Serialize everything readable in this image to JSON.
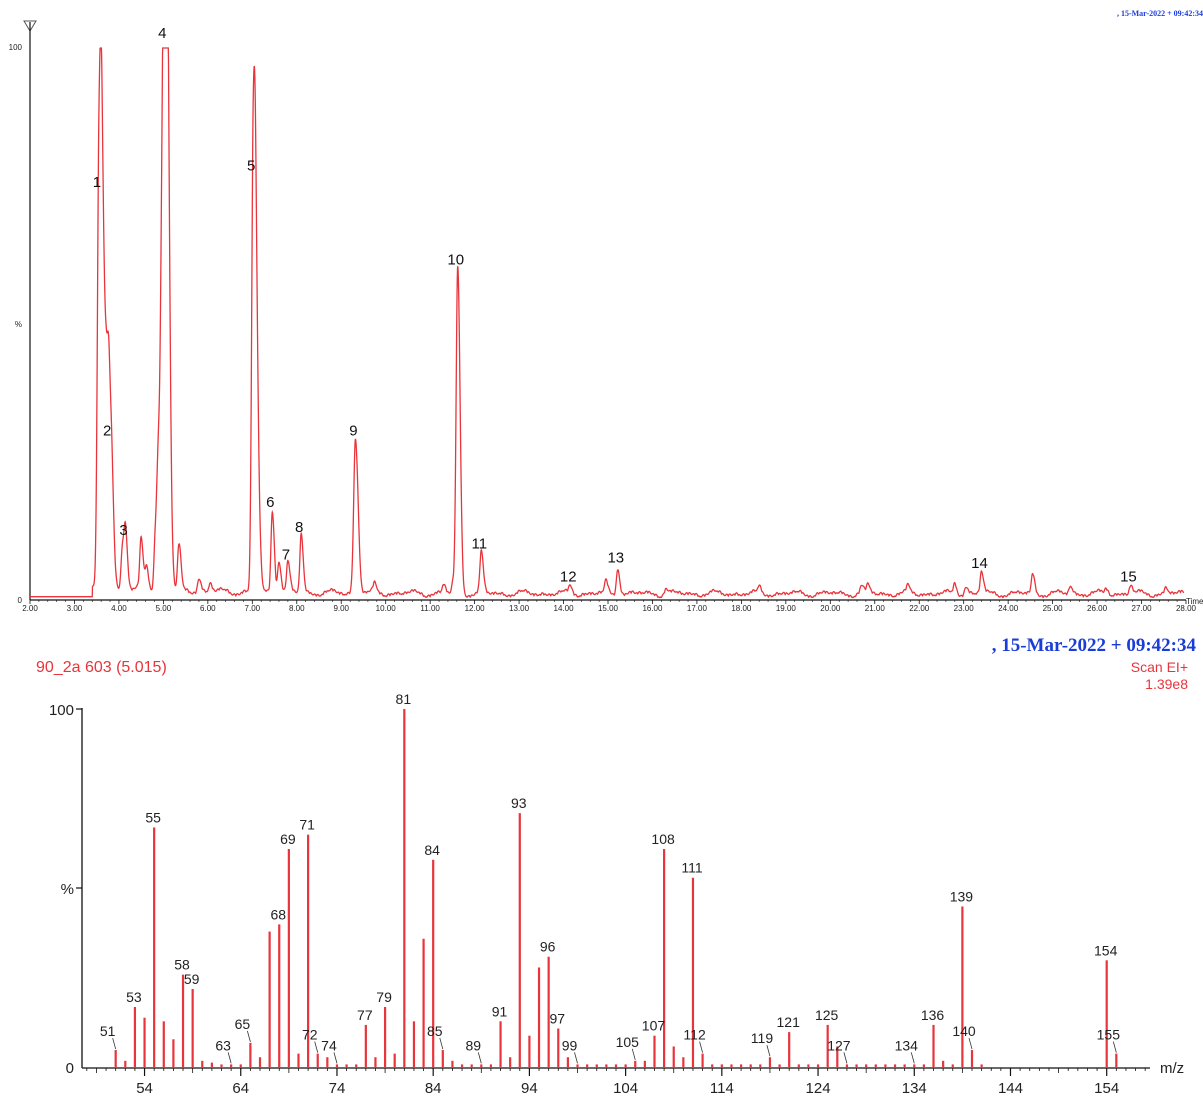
{
  "chromatogram": {
    "header_date": ", 15-Mar-2022 + 09:42:34",
    "y_label_top": "100",
    "y_label_mid": "%",
    "y_label_zero": "0",
    "x_title": "Time",
    "line_color": "#e8343b",
    "chart_data": {
      "type": "line",
      "xlim": [
        2.0,
        28.0
      ],
      "ylim": [
        0,
        100
      ],
      "x_ticks": [
        "2.00",
        "3.00",
        "4.00",
        "5.00",
        "6.00",
        "7.00",
        "8.00",
        "9.00",
        "10.00",
        "11.00",
        "12.00",
        "13.00",
        "14.00",
        "15.00",
        "16.00",
        "17.00",
        "18.00",
        "19.00",
        "20.00",
        "21.00",
        "22.00",
        "23.00",
        "24.00",
        "25.00",
        "26.00",
        "27.00",
        "28.00"
      ],
      "peaks": [
        {
          "label": "1",
          "x": 3.55,
          "y": 73
        },
        {
          "label": "2",
          "x": 3.78,
          "y": 28
        },
        {
          "label": "3",
          "x": 4.15,
          "y": 10
        },
        {
          "label": "4",
          "x": 5.02,
          "y": 100
        },
        {
          "label": "5",
          "x": 7.02,
          "y": 76
        },
        {
          "label": "6",
          "x": 7.45,
          "y": 15
        },
        {
          "label": "7",
          "x": 7.8,
          "y": 5.5
        },
        {
          "label": "8",
          "x": 8.1,
          "y": 10.5
        },
        {
          "label": "9",
          "x": 9.32,
          "y": 28
        },
        {
          "label": "10",
          "x": 11.62,
          "y": 59
        },
        {
          "label": "11",
          "x": 12.15,
          "y": 7.5
        },
        {
          "label": "12",
          "x": 14.15,
          "y": 1.5
        },
        {
          "label": "13",
          "x": 15.22,
          "y": 5
        },
        {
          "label": "14",
          "x": 23.4,
          "y": 4
        },
        {
          "label": "15",
          "x": 26.75,
          "y": 1.5
        }
      ],
      "minor_peaks": [
        {
          "x": 3.62,
          "y": 60
        },
        {
          "x": 3.72,
          "y": 22
        },
        {
          "x": 3.85,
          "y": 8
        },
        {
          "x": 4.08,
          "y": 8
        },
        {
          "x": 4.5,
          "y": 9
        },
        {
          "x": 4.62,
          "y": 4
        },
        {
          "x": 4.82,
          "y": 9
        },
        {
          "x": 4.9,
          "y": 25
        },
        {
          "x": 4.96,
          "y": 18
        },
        {
          "x": 5.08,
          "y": 70
        },
        {
          "x": 5.35,
          "y": 8
        },
        {
          "x": 5.8,
          "y": 2.5
        },
        {
          "x": 6.05,
          "y": 1.5
        },
        {
          "x": 7.08,
          "y": 40
        },
        {
          "x": 7.6,
          "y": 6
        },
        {
          "x": 9.75,
          "y": 1.5
        },
        {
          "x": 11.3,
          "y": 1.5
        },
        {
          "x": 11.52,
          "y": 2
        },
        {
          "x": 14.95,
          "y": 2
        },
        {
          "x": 16.3,
          "y": 1
        },
        {
          "x": 18.4,
          "y": 1
        },
        {
          "x": 20.7,
          "y": 1.3
        },
        {
          "x": 20.85,
          "y": 1.5
        },
        {
          "x": 21.75,
          "y": 1.2
        },
        {
          "x": 22.8,
          "y": 1.8
        },
        {
          "x": 23.05,
          "y": 1.5
        },
        {
          "x": 24.55,
          "y": 3.5
        },
        {
          "x": 25.4,
          "y": 1.5
        },
        {
          "x": 26.2,
          "y": 1
        },
        {
          "x": 27.55,
          "y": 1
        }
      ]
    }
  },
  "mass_spectrum": {
    "header_date": ", 15-Mar-2022 + 09:42:34",
    "scan_id": "90_2a 603 (5.015)",
    "scan_mode": "Scan EI+",
    "intensity": "1.39e8",
    "y_label_top": "100",
    "y_label_mid": "%",
    "y_label_zero": "0",
    "x_title": "m/z",
    "bar_color": "#e8343b",
    "chart_data": {
      "type": "bar",
      "xlim": [
        47.5,
        158.5
      ],
      "ylim": [
        0,
        100
      ],
      "x_ticks": [
        54,
        64,
        74,
        84,
        94,
        104,
        114,
        124,
        134,
        144,
        154
      ],
      "bars": [
        {
          "mz": 51,
          "y": 5,
          "label": "51"
        },
        {
          "mz": 52,
          "y": 2
        },
        {
          "mz": 53,
          "y": 17,
          "label": "53"
        },
        {
          "mz": 54,
          "y": 14
        },
        {
          "mz": 55,
          "y": 67,
          "label": "55"
        },
        {
          "mz": 56,
          "y": 13
        },
        {
          "mz": 57,
          "y": 8
        },
        {
          "mz": 58,
          "y": 26,
          "label": "58"
        },
        {
          "mz": 59,
          "y": 22,
          "label": "59"
        },
        {
          "mz": 60,
          "y": 2
        },
        {
          "mz": 61,
          "y": 1.5
        },
        {
          "mz": 62,
          "y": 1
        },
        {
          "mz": 63,
          "y": 1,
          "label": "63"
        },
        {
          "mz": 64,
          "y": 1
        },
        {
          "mz": 65,
          "y": 7,
          "label": "65"
        },
        {
          "mz": 66,
          "y": 3
        },
        {
          "mz": 67,
          "y": 38
        },
        {
          "mz": 68,
          "y": 40,
          "label": "68"
        },
        {
          "mz": 69,
          "y": 61,
          "label": "69"
        },
        {
          "mz": 70,
          "y": 4
        },
        {
          "mz": 71,
          "y": 65,
          "label": "71"
        },
        {
          "mz": 72,
          "y": 4,
          "label": "72"
        },
        {
          "mz": 73,
          "y": 3
        },
        {
          "mz": 74,
          "y": 1,
          "label": "74"
        },
        {
          "mz": 75,
          "y": 1
        },
        {
          "mz": 76,
          "y": 1
        },
        {
          "mz": 77,
          "y": 12,
          "label": "77"
        },
        {
          "mz": 78,
          "y": 3
        },
        {
          "mz": 79,
          "y": 17,
          "label": "79"
        },
        {
          "mz": 80,
          "y": 4
        },
        {
          "mz": 81,
          "y": 100,
          "label": "81"
        },
        {
          "mz": 82,
          "y": 13
        },
        {
          "mz": 83,
          "y": 36
        },
        {
          "mz": 84,
          "y": 58,
          "label": "84"
        },
        {
          "mz": 85,
          "y": 5,
          "label": "85"
        },
        {
          "mz": 86,
          "y": 2
        },
        {
          "mz": 87,
          "y": 1
        },
        {
          "mz": 88,
          "y": 1
        },
        {
          "mz": 89,
          "y": 1,
          "label": "89"
        },
        {
          "mz": 90,
          "y": 1
        },
        {
          "mz": 91,
          "y": 13,
          "label": "91"
        },
        {
          "mz": 92,
          "y": 3
        },
        {
          "mz": 93,
          "y": 71,
          "label": "93"
        },
        {
          "mz": 94,
          "y": 9
        },
        {
          "mz": 95,
          "y": 28
        },
        {
          "mz": 96,
          "y": 31,
          "label": "96"
        },
        {
          "mz": 97,
          "y": 11,
          "label": "97"
        },
        {
          "mz": 98,
          "y": 3
        },
        {
          "mz": 99,
          "y": 1,
          "label": "99"
        },
        {
          "mz": 100,
          "y": 1
        },
        {
          "mz": 101,
          "y": 1
        },
        {
          "mz": 102,
          "y": 1
        },
        {
          "mz": 103,
          "y": 1
        },
        {
          "mz": 104,
          "y": 1
        },
        {
          "mz": 105,
          "y": 2,
          "label": "105"
        },
        {
          "mz": 106,
          "y": 2
        },
        {
          "mz": 107,
          "y": 9,
          "label": "107"
        },
        {
          "mz": 108,
          "y": 61,
          "label": "108"
        },
        {
          "mz": 109,
          "y": 6
        },
        {
          "mz": 110,
          "y": 3
        },
        {
          "mz": 111,
          "y": 53,
          "label": "111"
        },
        {
          "mz": 112,
          "y": 4,
          "label": "112"
        },
        {
          "mz": 113,
          "y": 1
        },
        {
          "mz": 114,
          "y": 1
        },
        {
          "mz": 115,
          "y": 1
        },
        {
          "mz": 116,
          "y": 1
        },
        {
          "mz": 117,
          "y": 1
        },
        {
          "mz": 118,
          "y": 1
        },
        {
          "mz": 119,
          "y": 3,
          "label": "119"
        },
        {
          "mz": 120,
          "y": 1
        },
        {
          "mz": 121,
          "y": 10,
          "label": "121"
        },
        {
          "mz": 122,
          "y": 1
        },
        {
          "mz": 123,
          "y": 1
        },
        {
          "mz": 124,
          "y": 1
        },
        {
          "mz": 125,
          "y": 12,
          "label": "125"
        },
        {
          "mz": 126,
          "y": 6
        },
        {
          "mz": 127,
          "y": 1,
          "label": "127"
        },
        {
          "mz": 128,
          "y": 1
        },
        {
          "mz": 129,
          "y": 1
        },
        {
          "mz": 130,
          "y": 1
        },
        {
          "mz": 131,
          "y": 1
        },
        {
          "mz": 132,
          "y": 1
        },
        {
          "mz": 133,
          "y": 1
        },
        {
          "mz": 134,
          "y": 1,
          "label": "134"
        },
        {
          "mz": 135,
          "y": 1
        },
        {
          "mz": 136,
          "y": 12,
          "label": "136"
        },
        {
          "mz": 137,
          "y": 2
        },
        {
          "mz": 138,
          "y": 1
        },
        {
          "mz": 139,
          "y": 45,
          "label": "139"
        },
        {
          "mz": 140,
          "y": 5,
          "label": "140"
        },
        {
          "mz": 141,
          "y": 1
        },
        {
          "mz": 154,
          "y": 30,
          "label": "154"
        },
        {
          "mz": 155,
          "y": 4,
          "label": "155"
        }
      ]
    }
  }
}
